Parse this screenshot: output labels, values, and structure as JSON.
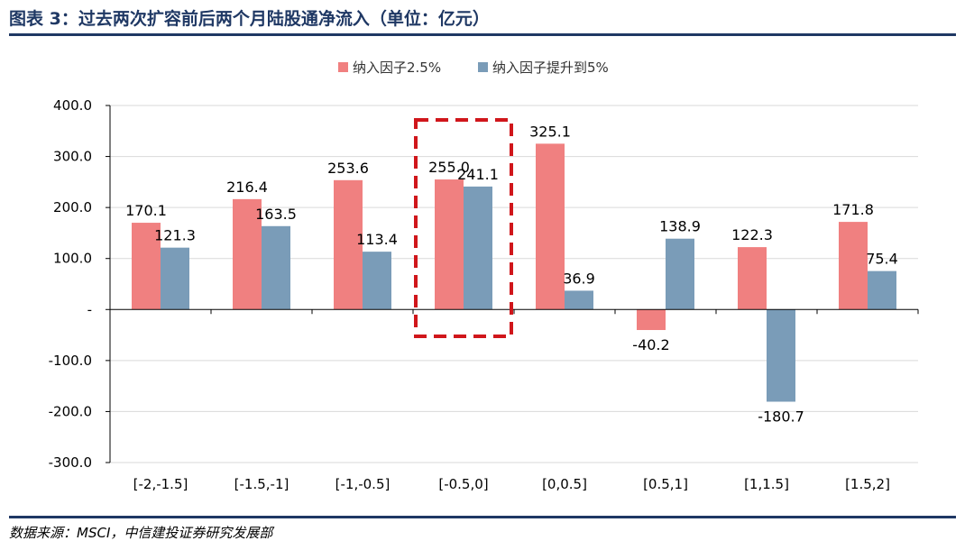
{
  "header": {
    "title": "图表 3：过去两次扩容前后两个月陆股通净流入（单位：亿元）"
  },
  "footer": {
    "source": "数据来源：MSCI，中信建投证券研究发展部"
  },
  "colors": {
    "series1": "#f08080",
    "series2": "#7a9cb8",
    "title": "#1f3864",
    "highlight": "#d0161b",
    "grid": "#d9d9d9"
  },
  "chart_data": {
    "type": "bar",
    "categories": [
      "[-2,-1.5]",
      "[-1.5,-1]",
      "[-1,-0.5]",
      "[-0.5,0]",
      "[0,0.5]",
      "[0.5,1]",
      "[1,1.5]",
      "[1.5,2]"
    ],
    "series": [
      {
        "name": "纳入因子2.5%",
        "values": [
          170.1,
          216.4,
          253.6,
          255.0,
          325.1,
          -40.2,
          122.3,
          171.8
        ],
        "labels": [
          "170.1",
          "216.4",
          "253.6",
          "255.0",
          "325.1",
          "-40.2",
          "122.3",
          "171.8"
        ]
      },
      {
        "name": "纳入因子提升到5%",
        "values": [
          121.3,
          163.5,
          113.4,
          241.1,
          36.9,
          138.9,
          -180.7,
          75.4
        ],
        "labels": [
          "121.3",
          "163.5",
          "113.4",
          "241.1",
          "36.9",
          "138.9",
          "-180.7",
          "75.4"
        ]
      }
    ],
    "y_ticks": [
      {
        "value": 400,
        "label": "400.0"
      },
      {
        "value": 300,
        "label": "300.0"
      },
      {
        "value": 200,
        "label": "200.0"
      },
      {
        "value": 100,
        "label": "100.0"
      },
      {
        "value": 0,
        "label": "-"
      },
      {
        "value": -100,
        "label": "-100.0"
      },
      {
        "value": -200,
        "label": "-200.0"
      },
      {
        "value": -300,
        "label": "-300.0"
      }
    ],
    "ylim": [
      -300,
      400
    ],
    "grid": true,
    "legend_position": "top-center",
    "highlight_category": "[-0.5,0]"
  }
}
